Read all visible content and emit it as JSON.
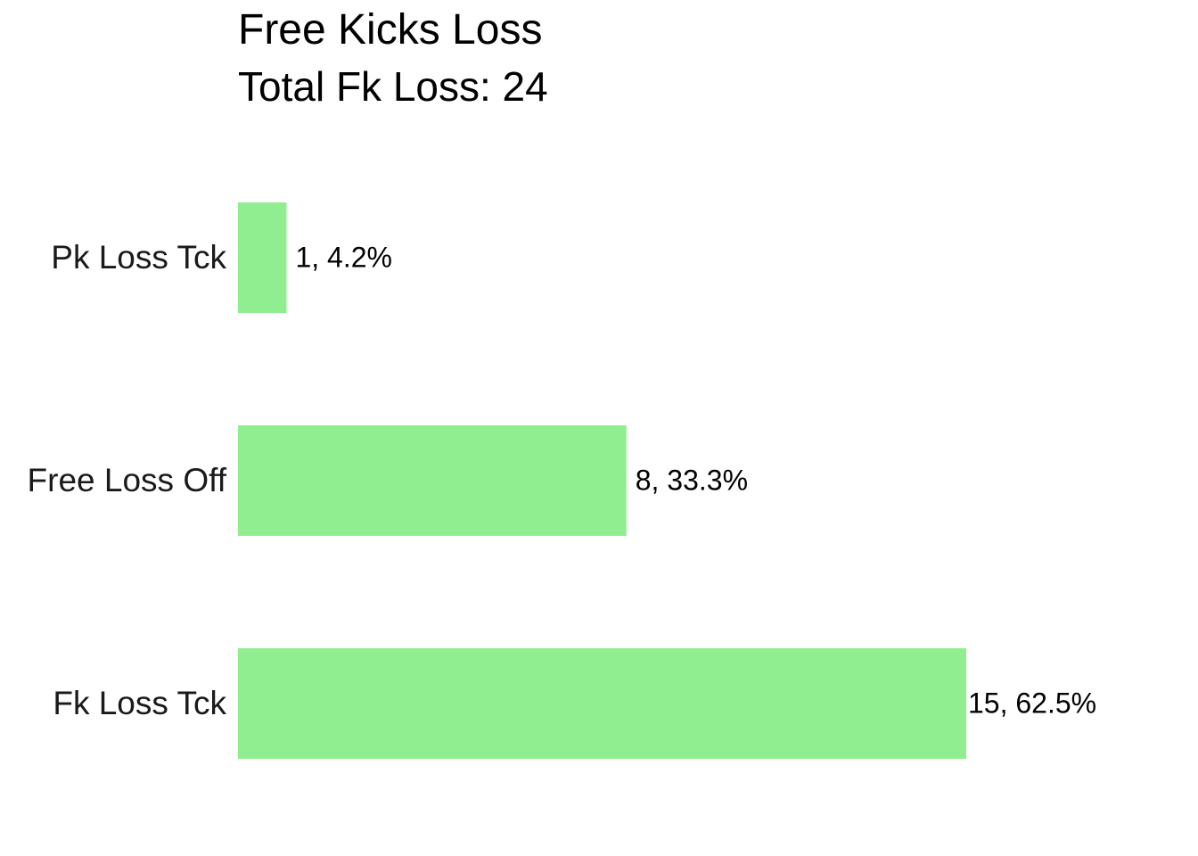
{
  "chart_data": {
    "type": "bar",
    "orientation": "horizontal",
    "title": "Free Kicks Loss",
    "subtitle": "Total Fk Loss: 24",
    "categories": [
      "Pk Loss Tck",
      "Free Loss Off",
      "Fk Loss Tck"
    ],
    "values": [
      1,
      8,
      15
    ],
    "data_labels": [
      "1, 4.2%",
      "8, 33.3%",
      "15, 62.5%"
    ],
    "xlim": [
      0,
      15
    ],
    "grid": false,
    "legend": "none",
    "bar_color": "#90EE90",
    "text_color": "#000000",
    "axis_label_color": "#1A1A1A"
  }
}
